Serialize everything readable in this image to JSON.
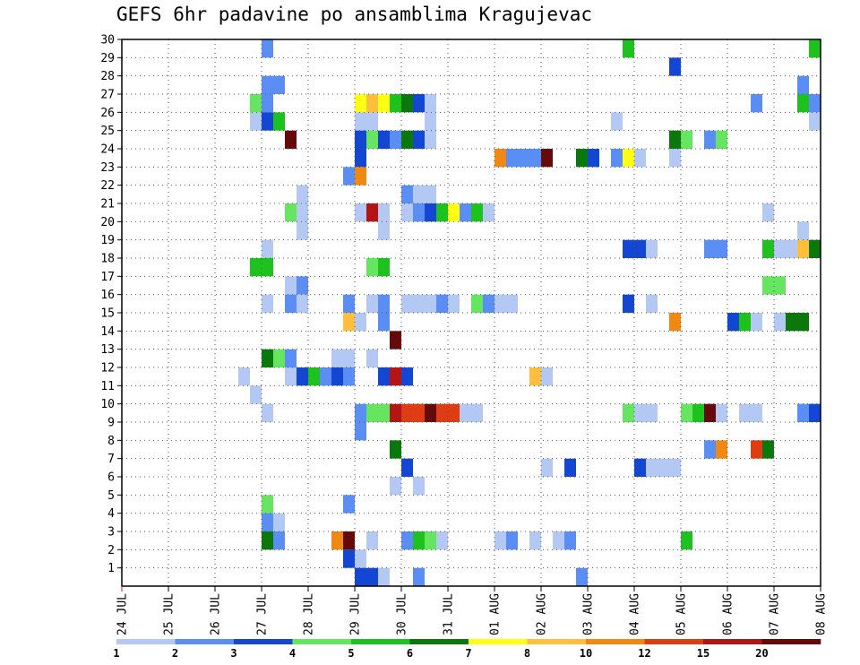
{
  "chart_data": {
    "type": "heatmap",
    "title": "GEFS 6hr padavine po ansamblima Kragujevac",
    "x_tick_labels": [
      "24 JUL",
      "25 JUL",
      "26 JUL",
      "27 JUL",
      "28 JUL",
      "29 JUL",
      "30 JUL",
      "31 JUL",
      "01 AUG",
      "02 AUG",
      "03 AUG",
      "04 AUG",
      "05 AUG",
      "06 AUG",
      "07 AUG",
      "08 AUG"
    ],
    "y_tick_labels": [
      "1",
      "2",
      "3",
      "4",
      "5",
      "6",
      "7",
      "8",
      "9",
      "10",
      "11",
      "12",
      "13",
      "14",
      "15",
      "16",
      "17",
      "18",
      "19",
      "20",
      "21",
      "22",
      "23",
      "24",
      "25",
      "26",
      "27",
      "28",
      "29",
      "30"
    ],
    "x_unit": "6-hour step from 24 JUL 00Z",
    "y_unit": "ensemble member",
    "xlim": [
      0,
      60
    ],
    "ylim": [
      0,
      30
    ],
    "grid": true,
    "colorbar": {
      "placement": "bottom",
      "labels": [
        "1",
        "2",
        "3",
        "4",
        "5",
        "6",
        "7",
        "8",
        "10",
        "12",
        "15",
        "20"
      ],
      "colors": [
        "#b4c8f4",
        "#5a8ef4",
        "#1446d4",
        "#66e660",
        "#1ec21e",
        "#0a780a",
        "#ffff14",
        "#ffbe3c",
        "#f08814",
        "#e03c14",
        "#b41414",
        "#640a0a"
      ]
    },
    "cells": [
      {
        "x": 12,
        "y": 30,
        "v": 2
      },
      {
        "x": 43,
        "y": 30,
        "v": 5
      },
      {
        "x": 59,
        "y": 30,
        "v": 5
      },
      {
        "x": 47,
        "y": 29,
        "v": 3
      },
      {
        "x": 12,
        "y": 28,
        "v": 2
      },
      {
        "x": 13,
        "y": 28,
        "v": 2
      },
      {
        "x": 58,
        "y": 28,
        "v": 2
      },
      {
        "x": 11,
        "y": 27,
        "v": 4
      },
      {
        "x": 12,
        "y": 27,
        "v": 2
      },
      {
        "x": 20,
        "y": 27,
        "v": 7
      },
      {
        "x": 21,
        "y": 27,
        "v": 8
      },
      {
        "x": 22,
        "y": 27,
        "v": 7
      },
      {
        "x": 23,
        "y": 27,
        "v": 5
      },
      {
        "x": 24,
        "y": 27,
        "v": 6
      },
      {
        "x": 25,
        "y": 27,
        "v": 3
      },
      {
        "x": 26,
        "y": 27,
        "v": 1
      },
      {
        "x": 54,
        "y": 27,
        "v": 2
      },
      {
        "x": 58,
        "y": 27,
        "v": 5
      },
      {
        "x": 59,
        "y": 27,
        "v": 2
      },
      {
        "x": 11,
        "y": 26,
        "v": 1
      },
      {
        "x": 12,
        "y": 26,
        "v": 3
      },
      {
        "x": 13,
        "y": 26,
        "v": 5
      },
      {
        "x": 20,
        "y": 26,
        "v": 1
      },
      {
        "x": 21,
        "y": 26,
        "v": 1
      },
      {
        "x": 26,
        "y": 26,
        "v": 1
      },
      {
        "x": 42,
        "y": 26,
        "v": 1
      },
      {
        "x": 59,
        "y": 26,
        "v": 1
      },
      {
        "x": 14,
        "y": 25,
        "v": 20
      },
      {
        "x": 20,
        "y": 25,
        "v": 3
      },
      {
        "x": 21,
        "y": 25,
        "v": 4
      },
      {
        "x": 22,
        "y": 25,
        "v": 3
      },
      {
        "x": 23,
        "y": 25,
        "v": 2
      },
      {
        "x": 24,
        "y": 25,
        "v": 6
      },
      {
        "x": 25,
        "y": 25,
        "v": 3
      },
      {
        "x": 26,
        "y": 25,
        "v": 1
      },
      {
        "x": 47,
        "y": 25,
        "v": 6
      },
      {
        "x": 48,
        "y": 25,
        "v": 4
      },
      {
        "x": 50,
        "y": 25,
        "v": 2
      },
      {
        "x": 51,
        "y": 25,
        "v": 4
      },
      {
        "x": 20,
        "y": 24,
        "v": 3
      },
      {
        "x": 32,
        "y": 24,
        "v": 10
      },
      {
        "x": 33,
        "y": 24,
        "v": 2
      },
      {
        "x": 34,
        "y": 24,
        "v": 2
      },
      {
        "x": 35,
        "y": 24,
        "v": 2
      },
      {
        "x": 36,
        "y": 24,
        "v": 20
      },
      {
        "x": 39,
        "y": 24,
        "v": 6
      },
      {
        "x": 40,
        "y": 24,
        "v": 3
      },
      {
        "x": 42,
        "y": 24,
        "v": 2
      },
      {
        "x": 43,
        "y": 24,
        "v": 7
      },
      {
        "x": 44,
        "y": 24,
        "v": 1
      },
      {
        "x": 47,
        "y": 24,
        "v": 1
      },
      {
        "x": 19,
        "y": 23,
        "v": 2
      },
      {
        "x": 20,
        "y": 23,
        "v": 10
      },
      {
        "x": 15,
        "y": 22,
        "v": 1
      },
      {
        "x": 24,
        "y": 22,
        "v": 2
      },
      {
        "x": 25,
        "y": 22,
        "v": 1
      },
      {
        "x": 26,
        "y": 22,
        "v": 1
      },
      {
        "x": 14,
        "y": 21,
        "v": 4
      },
      {
        "x": 15,
        "y": 21,
        "v": 1
      },
      {
        "x": 20,
        "y": 21,
        "v": 1
      },
      {
        "x": 21,
        "y": 21,
        "v": 15
      },
      {
        "x": 22,
        "y": 21,
        "v": 1
      },
      {
        "x": 24,
        "y": 21,
        "v": 1
      },
      {
        "x": 25,
        "y": 21,
        "v": 2
      },
      {
        "x": 26,
        "y": 21,
        "v": 3
      },
      {
        "x": 27,
        "y": 21,
        "v": 5
      },
      {
        "x": 28,
        "y": 21,
        "v": 7
      },
      {
        "x": 29,
        "y": 21,
        "v": 2
      },
      {
        "x": 30,
        "y": 21,
        "v": 5
      },
      {
        "x": 31,
        "y": 21,
        "v": 1
      },
      {
        "x": 55,
        "y": 21,
        "v": 1
      },
      {
        "x": 15,
        "y": 20,
        "v": 1
      },
      {
        "x": 22,
        "y": 20,
        "v": 1
      },
      {
        "x": 58,
        "y": 20,
        "v": 1
      },
      {
        "x": 12,
        "y": 19,
        "v": 1
      },
      {
        "x": 43,
        "y": 19,
        "v": 3
      },
      {
        "x": 44,
        "y": 19,
        "v": 3
      },
      {
        "x": 45,
        "y": 19,
        "v": 1
      },
      {
        "x": 50,
        "y": 19,
        "v": 2
      },
      {
        "x": 51,
        "y": 19,
        "v": 2
      },
      {
        "x": 55,
        "y": 19,
        "v": 5
      },
      {
        "x": 56,
        "y": 19,
        "v": 1
      },
      {
        "x": 57,
        "y": 19,
        "v": 1
      },
      {
        "x": 58,
        "y": 19,
        "v": 8
      },
      {
        "x": 59,
        "y": 19,
        "v": 6
      },
      {
        "x": 11,
        "y": 18,
        "v": 5
      },
      {
        "x": 12,
        "y": 18,
        "v": 5
      },
      {
        "x": 21,
        "y": 18,
        "v": 4
      },
      {
        "x": 22,
        "y": 18,
        "v": 5
      },
      {
        "x": 14,
        "y": 17,
        "v": 1
      },
      {
        "x": 15,
        "y": 17,
        "v": 2
      },
      {
        "x": 55,
        "y": 17,
        "v": 4
      },
      {
        "x": 56,
        "y": 17,
        "v": 4
      },
      {
        "x": 12,
        "y": 16,
        "v": 1
      },
      {
        "x": 14,
        "y": 16,
        "v": 2
      },
      {
        "x": 15,
        "y": 16,
        "v": 1
      },
      {
        "x": 19,
        "y": 16,
        "v": 2
      },
      {
        "x": 21,
        "y": 16,
        "v": 1
      },
      {
        "x": 22,
        "y": 16,
        "v": 2
      },
      {
        "x": 24,
        "y": 16,
        "v": 1
      },
      {
        "x": 25,
        "y": 16,
        "v": 1
      },
      {
        "x": 26,
        "y": 16,
        "v": 1
      },
      {
        "x": 27,
        "y": 16,
        "v": 2
      },
      {
        "x": 28,
        "y": 16,
        "v": 1
      },
      {
        "x": 30,
        "y": 16,
        "v": 4
      },
      {
        "x": 31,
        "y": 16,
        "v": 2
      },
      {
        "x": 32,
        "y": 16,
        "v": 1
      },
      {
        "x": 33,
        "y": 16,
        "v": 1
      },
      {
        "x": 43,
        "y": 16,
        "v": 3
      },
      {
        "x": 45,
        "y": 16,
        "v": 1
      },
      {
        "x": 19,
        "y": 15,
        "v": 8
      },
      {
        "x": 20,
        "y": 15,
        "v": 1
      },
      {
        "x": 22,
        "y": 15,
        "v": 2
      },
      {
        "x": 47,
        "y": 15,
        "v": 10
      },
      {
        "x": 52,
        "y": 15,
        "v": 3
      },
      {
        "x": 53,
        "y": 15,
        "v": 5
      },
      {
        "x": 54,
        "y": 15,
        "v": 1
      },
      {
        "x": 56,
        "y": 15,
        "v": 1
      },
      {
        "x": 57,
        "y": 15,
        "v": 6
      },
      {
        "x": 58,
        "y": 15,
        "v": 6
      },
      {
        "x": 23,
        "y": 14,
        "v": 20
      },
      {
        "x": 12,
        "y": 13,
        "v": 6
      },
      {
        "x": 13,
        "y": 13,
        "v": 4
      },
      {
        "x": 14,
        "y": 13,
        "v": 2
      },
      {
        "x": 18,
        "y": 13,
        "v": 1
      },
      {
        "x": 19,
        "y": 13,
        "v": 1
      },
      {
        "x": 21,
        "y": 13,
        "v": 1
      },
      {
        "x": 10,
        "y": 12,
        "v": 1
      },
      {
        "x": 14,
        "y": 12,
        "v": 1
      },
      {
        "x": 15,
        "y": 12,
        "v": 3
      },
      {
        "x": 16,
        "y": 12,
        "v": 5
      },
      {
        "x": 17,
        "y": 12,
        "v": 2
      },
      {
        "x": 18,
        "y": 12,
        "v": 3
      },
      {
        "x": 19,
        "y": 12,
        "v": 2
      },
      {
        "x": 22,
        "y": 12,
        "v": 3
      },
      {
        "x": 23,
        "y": 12,
        "v": 15
      },
      {
        "x": 24,
        "y": 12,
        "v": 3
      },
      {
        "x": 35,
        "y": 12,
        "v": 8
      },
      {
        "x": 36,
        "y": 12,
        "v": 1
      },
      {
        "x": 11,
        "y": 11,
        "v": 1
      },
      {
        "x": 12,
        "y": 10,
        "v": 1
      },
      {
        "x": 20,
        "y": 10,
        "v": 2
      },
      {
        "x": 21,
        "y": 10,
        "v": 4
      },
      {
        "x": 22,
        "y": 10,
        "v": 4
      },
      {
        "x": 23,
        "y": 10,
        "v": 15
      },
      {
        "x": 24,
        "y": 10,
        "v": 12
      },
      {
        "x": 25,
        "y": 10,
        "v": 12
      },
      {
        "x": 26,
        "y": 10,
        "v": 20
      },
      {
        "x": 27,
        "y": 10,
        "v": 12
      },
      {
        "x": 28,
        "y": 10,
        "v": 12
      },
      {
        "x": 29,
        "y": 10,
        "v": 1
      },
      {
        "x": 30,
        "y": 10,
        "v": 1
      },
      {
        "x": 43,
        "y": 10,
        "v": 4
      },
      {
        "x": 44,
        "y": 10,
        "v": 1
      },
      {
        "x": 45,
        "y": 10,
        "v": 1
      },
      {
        "x": 48,
        "y": 10,
        "v": 4
      },
      {
        "x": 49,
        "y": 10,
        "v": 5
      },
      {
        "x": 50,
        "y": 10,
        "v": 20
      },
      {
        "x": 51,
        "y": 10,
        "v": 1
      },
      {
        "x": 53,
        "y": 10,
        "v": 1
      },
      {
        "x": 54,
        "y": 10,
        "v": 1
      },
      {
        "x": 58,
        "y": 10,
        "v": 2
      },
      {
        "x": 59,
        "y": 10,
        "v": 3
      },
      {
        "x": 20,
        "y": 9,
        "v": 2
      },
      {
        "x": 23,
        "y": 8,
        "v": 6
      },
      {
        "x": 50,
        "y": 8,
        "v": 2
      },
      {
        "x": 51,
        "y": 8,
        "v": 10
      },
      {
        "x": 54,
        "y": 8,
        "v": 12
      },
      {
        "x": 55,
        "y": 8,
        "v": 6
      },
      {
        "x": 24,
        "y": 7,
        "v": 3
      },
      {
        "x": 36,
        "y": 7,
        "v": 1
      },
      {
        "x": 38,
        "y": 7,
        "v": 3
      },
      {
        "x": 44,
        "y": 7,
        "v": 3
      },
      {
        "x": 45,
        "y": 7,
        "v": 1
      },
      {
        "x": 46,
        "y": 7,
        "v": 1
      },
      {
        "x": 47,
        "y": 7,
        "v": 1
      },
      {
        "x": 23,
        "y": 6,
        "v": 1
      },
      {
        "x": 25,
        "y": 6,
        "v": 1
      },
      {
        "x": 12,
        "y": 5,
        "v": 4
      },
      {
        "x": 19,
        "y": 5,
        "v": 2
      },
      {
        "x": 12,
        "y": 4,
        "v": 2
      },
      {
        "x": 13,
        "y": 4,
        "v": 1
      },
      {
        "x": 12,
        "y": 3,
        "v": 6
      },
      {
        "x": 13,
        "y": 3,
        "v": 2
      },
      {
        "x": 18,
        "y": 3,
        "v": 10
      },
      {
        "x": 19,
        "y": 3,
        "v": 20
      },
      {
        "x": 21,
        "y": 3,
        "v": 1
      },
      {
        "x": 24,
        "y": 3,
        "v": 2
      },
      {
        "x": 25,
        "y": 3,
        "v": 5
      },
      {
        "x": 26,
        "y": 3,
        "v": 4
      },
      {
        "x": 27,
        "y": 3,
        "v": 1
      },
      {
        "x": 32,
        "y": 3,
        "v": 1
      },
      {
        "x": 33,
        "y": 3,
        "v": 2
      },
      {
        "x": 35,
        "y": 3,
        "v": 1
      },
      {
        "x": 37,
        "y": 3,
        "v": 1
      },
      {
        "x": 38,
        "y": 3,
        "v": 2
      },
      {
        "x": 48,
        "y": 3,
        "v": 5
      },
      {
        "x": 19,
        "y": 2,
        "v": 3
      },
      {
        "x": 20,
        "y": 2,
        "v": 1
      },
      {
        "x": 20,
        "y": 1,
        "v": 3
      },
      {
        "x": 21,
        "y": 1,
        "v": 3
      },
      {
        "x": 22,
        "y": 1,
        "v": 1
      },
      {
        "x": 25,
        "y": 1,
        "v": 2
      },
      {
        "x": 39,
        "y": 1,
        "v": 2
      }
    ]
  }
}
